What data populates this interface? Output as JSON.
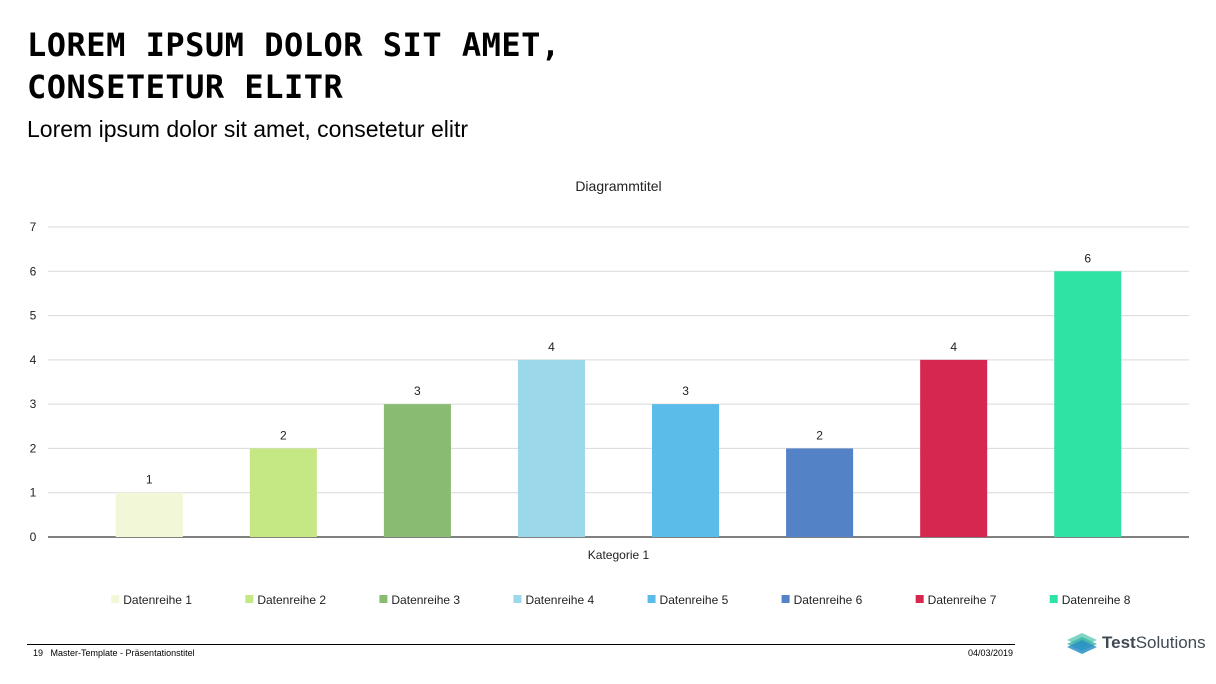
{
  "slide": {
    "title_line1": "LOREM IPSUM DOLOR SIT AMET,",
    "title_line2": "CONSETETUR ELITR",
    "subtitle": "Lorem ipsum dolor sit amet, consetetur elitr"
  },
  "footer": {
    "page_number": "19",
    "label": "Master-Template - Präsentationstitel",
    "date": "04/03/2019",
    "logo_text_bold": "Test",
    "logo_text_regular": "Solutions"
  },
  "chart_data": {
    "type": "bar",
    "title": "Diagrammtitel",
    "xlabel": "",
    "ylabel": "",
    "categories": [
      "Kategorie 1"
    ],
    "ylim": [
      0,
      7
    ],
    "yticks": [
      0,
      1,
      2,
      3,
      4,
      5,
      6,
      7
    ],
    "grid": true,
    "legend_position": "bottom",
    "series": [
      {
        "name": "Datenreihe 1",
        "values": [
          1
        ],
        "color": "#f2f7d8"
      },
      {
        "name": "Datenreihe 2",
        "values": [
          2
        ],
        "color": "#c5e784"
      },
      {
        "name": "Datenreihe 3",
        "values": [
          3
        ],
        "color": "#8abb72"
      },
      {
        "name": "Datenreihe 4",
        "values": [
          4
        ],
        "color": "#9bd8ea"
      },
      {
        "name": "Datenreihe 5",
        "values": [
          3
        ],
        "color": "#5bbbe9"
      },
      {
        "name": "Datenreihe 6",
        "values": [
          2
        ],
        "color": "#5383c6"
      },
      {
        "name": "Datenreihe 7",
        "values": [
          4
        ],
        "color": "#d62751"
      },
      {
        "name": "Datenreihe 8",
        "values": [
          6
        ],
        "color": "#2ee3a3"
      }
    ]
  }
}
